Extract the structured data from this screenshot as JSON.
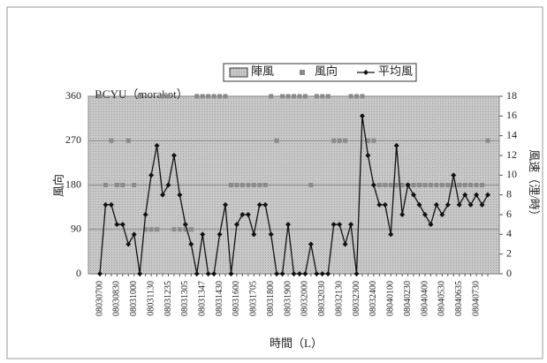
{
  "chart_data": {
    "type": "combo",
    "title": "RCYU（morakot）",
    "x_label": "時間（L）",
    "y_label": "風向",
    "y2_label": "風速（浬/時）",
    "categories": [
      "08030700",
      null,
      null,
      "08030830",
      null,
      null,
      "08031000",
      null,
      null,
      "08031130",
      null,
      null,
      "08031235",
      null,
      null,
      "08031305",
      null,
      null,
      "08031347",
      null,
      null,
      "08031430",
      null,
      null,
      "08031600",
      null,
      null,
      "08031705",
      null,
      null,
      "08031800",
      null,
      null,
      "08031900",
      null,
      null,
      "08032000",
      null,
      null,
      "08032030",
      null,
      null,
      "08032130",
      null,
      null,
      "08032300",
      null,
      null,
      "08032400",
      null,
      null,
      "08040100",
      null,
      null,
      "08040230",
      null,
      null,
      "08040400",
      null,
      null,
      "08040530",
      null,
      null,
      "08040635",
      null,
      null,
      "08040730",
      null,
      null
    ],
    "ylim": [
      0,
      360
    ],
    "yticks": [
      0,
      90,
      180,
      270,
      360
    ],
    "y2lim": [
      0,
      18
    ],
    "y2ticks": [
      0,
      2,
      4,
      6,
      8,
      10,
      12,
      14,
      16,
      18
    ],
    "grid": true,
    "series": [
      {
        "name": "陣風",
        "type": "bar",
        "color": "#bdbdbd",
        "values": [
          null,
          null,
          null,
          null,
          null,
          null,
          null,
          null,
          null,
          null,
          null,
          null,
          null,
          null,
          null,
          null,
          null,
          null,
          null,
          null,
          null,
          null,
          null,
          null,
          null,
          null,
          null,
          null,
          null,
          null,
          null,
          null,
          null,
          null,
          null,
          null,
          null,
          null,
          null,
          null,
          null,
          null,
          null,
          null,
          null,
          null,
          null,
          null,
          null,
          null,
          null,
          null,
          null,
          null,
          null,
          null,
          null,
          null,
          null,
          null,
          null,
          null,
          null,
          null,
          null,
          null,
          null,
          null,
          null
        ]
      },
      {
        "name": "風向",
        "type": "scatter",
        "color": "#8a8a8a",
        "values": [
          360,
          180,
          270,
          180,
          180,
          270,
          180,
          360,
          90,
          90,
          90,
          360,
          360,
          90,
          90,
          90,
          90,
          360,
          360,
          360,
          360,
          360,
          360,
          180,
          180,
          180,
          180,
          180,
          180,
          180,
          360,
          270,
          360,
          360,
          360,
          360,
          360,
          180,
          360,
          360,
          360,
          270,
          270,
          270,
          360,
          360,
          360,
          270,
          270,
          180,
          180,
          180,
          180,
          180,
          180,
          180,
          180,
          180,
          180,
          180,
          180,
          180,
          180,
          180,
          180,
          180,
          180,
          180,
          270
        ]
      },
      {
        "name": "平均風",
        "type": "line",
        "axis": "y2",
        "color": "#111111",
        "values": [
          0,
          7,
          7,
          5,
          5,
          3,
          4,
          0,
          6,
          10,
          13,
          8,
          9,
          12,
          8,
          5,
          3,
          0,
          4,
          0,
          0,
          4,
          7,
          0,
          5,
          6,
          6,
          4,
          7,
          7,
          4,
          0,
          0,
          5,
          0,
          0,
          0,
          3,
          0,
          0,
          0,
          5,
          5,
          3,
          5,
          0,
          16,
          12,
          9,
          7,
          7,
          4,
          13,
          6,
          9,
          8,
          7,
          6,
          5,
          7,
          6,
          7,
          10,
          7,
          8,
          7,
          8,
          7,
          8
        ]
      }
    ]
  }
}
